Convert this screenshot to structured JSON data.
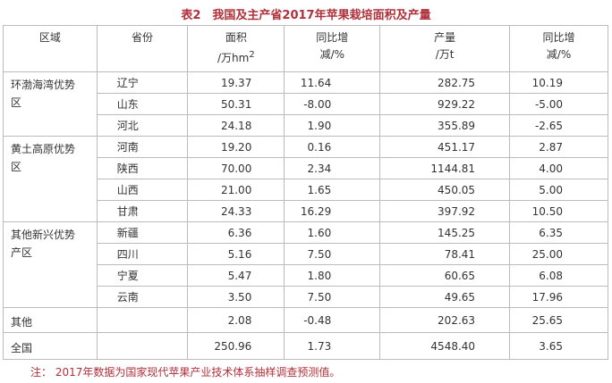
{
  "title": "表2　我国及主产省2017年苹果栽培面积及产量",
  "table": {
    "headers": [
      {
        "lines": [
          "区域"
        ]
      },
      {
        "lines": [
          "省份"
        ]
      },
      {
        "lines": [
          "面积",
          "/万hm"
        ],
        "sup": "2"
      },
      {
        "lines": [
          "同比增",
          "减/%"
        ]
      },
      {
        "lines": [
          "产量",
          "/万t"
        ]
      },
      {
        "lines": [
          "同比增",
          "减/%"
        ]
      }
    ],
    "groups": [
      {
        "region": [
          "环渤海湾优势",
          "区"
        ],
        "rows": [
          {
            "province": "辽宁",
            "values": [
              "19.37",
              "11.64",
              "282.75",
              "10.19"
            ]
          },
          {
            "province": "山东",
            "values": [
              "50.31",
              "-8.00",
              "929.22",
              "-5.00"
            ]
          },
          {
            "province": "河北",
            "values": [
              "24.18",
              "1.90",
              "355.89",
              "-2.65"
            ]
          }
        ]
      },
      {
        "region": [
          "黄土高原优势",
          "区"
        ],
        "rows": [
          {
            "province": "河南",
            "values": [
              "19.20",
              "0.16",
              "451.17",
              "2.87"
            ]
          },
          {
            "province": "陕西",
            "values": [
              "70.00",
              "2.34",
              "1144.81",
              "4.00"
            ]
          },
          {
            "province": "山西",
            "values": [
              "21.00",
              "1.65",
              "450.05",
              "5.00"
            ]
          },
          {
            "province": "甘肃",
            "values": [
              "24.33",
              "16.29",
              "397.92",
              "10.50"
            ]
          }
        ]
      },
      {
        "region": [
          "其他新兴优势",
          "产区"
        ],
        "rows": [
          {
            "province": "新疆",
            "values": [
              "6.36",
              "1.60",
              "145.25",
              "6.35"
            ]
          },
          {
            "province": "四川",
            "values": [
              "5.16",
              "7.50",
              "78.41",
              "25.00"
            ]
          },
          {
            "province": "宁夏",
            "values": [
              "5.47",
              "1.80",
              "60.65",
              "6.08"
            ]
          },
          {
            "province": "云南",
            "values": [
              "3.50",
              "7.50",
              "49.65",
              "17.96"
            ]
          }
        ]
      },
      {
        "region": [
          "其他"
        ],
        "rows": [
          {
            "values": [
              "2.08",
              "-0.48",
              "202.63",
              "25.65"
            ]
          }
        ]
      },
      {
        "region": [
          "全国"
        ],
        "rows": [
          {
            "values": [
              "250.96",
              "1.73",
              "4548.40",
              "3.65"
            ]
          }
        ]
      }
    ]
  },
  "note": "注：  2017年数据为国家现代苹果产业技术体系抽样调查预测值。"
}
